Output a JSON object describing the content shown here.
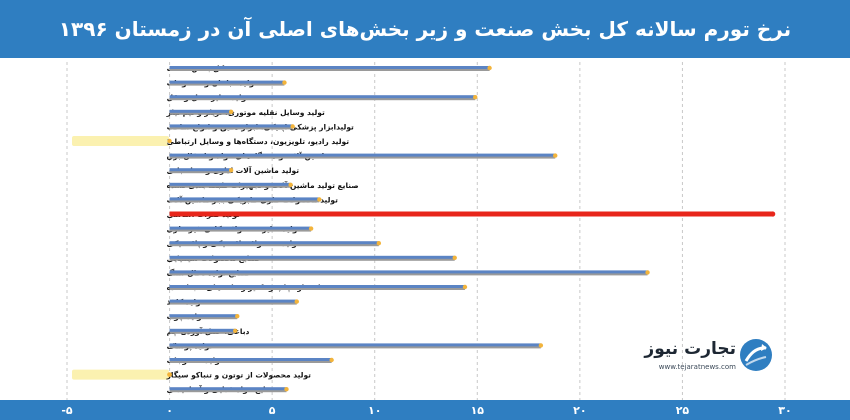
{
  "chart_data": {
    "type": "bar",
    "orientation": "horizontal",
    "title": "نرخ تورم سالانه کل بخش صنعت و زیر بخش‌های اصلی آن در زمستان ۱۳۹۶",
    "categories": [
      "کل بخش صنعت",
      "تولید مبلمان و مصنوعات",
      "تولید سایر حمل و نقل",
      "تولید وسایل نقلیه موتوری، تریلر و نیم تیلر",
      "تولیدابزار پزشکی اپتیکی، ابزار دقیق و انواع ساعت",
      "تولید رادیو، تلویزیون، دستگاه‌ها و وسایل ارتباطی",
      "ماشین آلات و دستگاه‌های مولد و انتقال برق",
      "تولید ماشین آلات اداری و محاسباتی",
      "صنایع تولید ماشین آلات و تجهیزات طبقه بندی نشده",
      "تولید محصولات فلزی فابریکی بجز ماشین آلات",
      "تولید فلزات اساسی",
      "تولید سایر محصولات کانی غیر فلزی",
      "تولید محصولات لاستیکی و پلاستیکی",
      "صنایع محصولات شیمیایی",
      "صنایع تولید ذغال سنگ",
      "انتشار، چاپ و تکثیر رسانه های ضبط شده",
      "تولید کاغذ",
      "تولید چوب",
      "دباغی، عمل آوردن چم",
      "تولید پوشاک",
      "تولید منسوجات",
      "تولید محصولات از توتون و تنباکو سیگار",
      "صنایع مواد غذایی و آشامیدنی"
    ],
    "values": [
      15.6,
      5.6,
      14.9,
      3.0,
      6.0,
      -0.1,
      18.8,
      3.0,
      5.9,
      7.3,
      29.4,
      6.9,
      10.2,
      13.9,
      23.3,
      14.4,
      6.2,
      3.3,
      3.2,
      18.1,
      7.9,
      0.0,
      5.7
    ],
    "highlighted_categories": [
      "تولید فلزات اساسی"
    ],
    "marked_zero_categories": [
      "تولید رادیو، تلویزیون، دستگاه‌ها و وسایل ارتباطی",
      "تولید محصولات از توتون و تنباکو سیگار"
    ],
    "xlim": [
      -5,
      30
    ],
    "x_ticks": [
      -5,
      0,
      5,
      10,
      15,
      20,
      25,
      30
    ],
    "x_tick_labels": [
      "-۵",
      "۰",
      "۵",
      "۱۰",
      "۱۵",
      "۲۰",
      "۲۵",
      "۳۰"
    ],
    "grid": "vertical dashed",
    "legend": "none",
    "colors": {
      "bar": "#5b84c4",
      "bar_shadow": "#9a9a9a",
      "highlight_bar": "#e8261b",
      "marker": "#f3b43b",
      "tick_highlight": "#fbf1b0",
      "header": "#2f7ec1",
      "gridline": "#c8c8c8"
    }
  },
  "brand": {
    "name": "تجارت نیوز",
    "url": "www.tejaratnews.com",
    "icon": "arrow-globe-logo-icon"
  }
}
